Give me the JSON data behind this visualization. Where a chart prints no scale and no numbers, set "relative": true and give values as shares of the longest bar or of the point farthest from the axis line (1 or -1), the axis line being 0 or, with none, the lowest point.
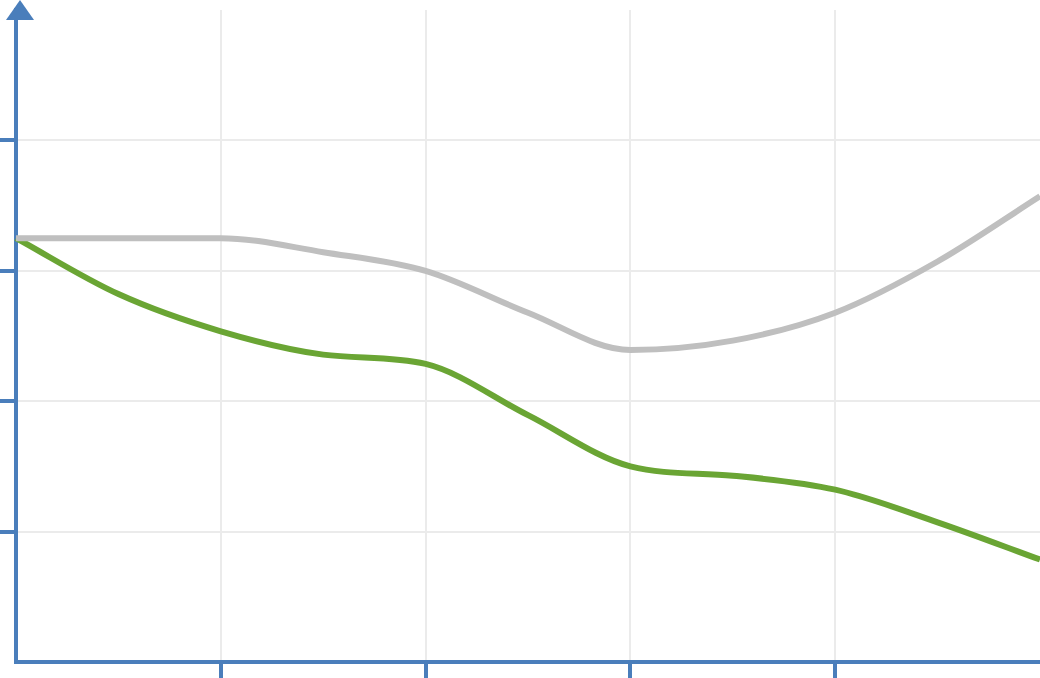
{
  "chart_data": {
    "type": "line",
    "relative": true,
    "categories": [
      null,
      null,
      null,
      null,
      null,
      null,
      null,
      null,
      null,
      null,
      null
    ],
    "series": [
      {
        "color": "#bfbfbf",
        "values": [
          0.91,
          0.91,
          0.91,
          0.88,
          0.84,
          0.75,
          0.67,
          0.69,
          0.75,
          0.86,
          1
        ]
      },
      {
        "color": "#6aa534",
        "values": [
          0.91,
          0.79,
          0.71,
          0.66,
          0.64,
          0.53,
          0.42,
          0.4,
          0.37,
          0.3,
          0.22
        ]
      }
    ],
    "grid": true,
    "tick_labels": false,
    "marker": "none"
  }
}
